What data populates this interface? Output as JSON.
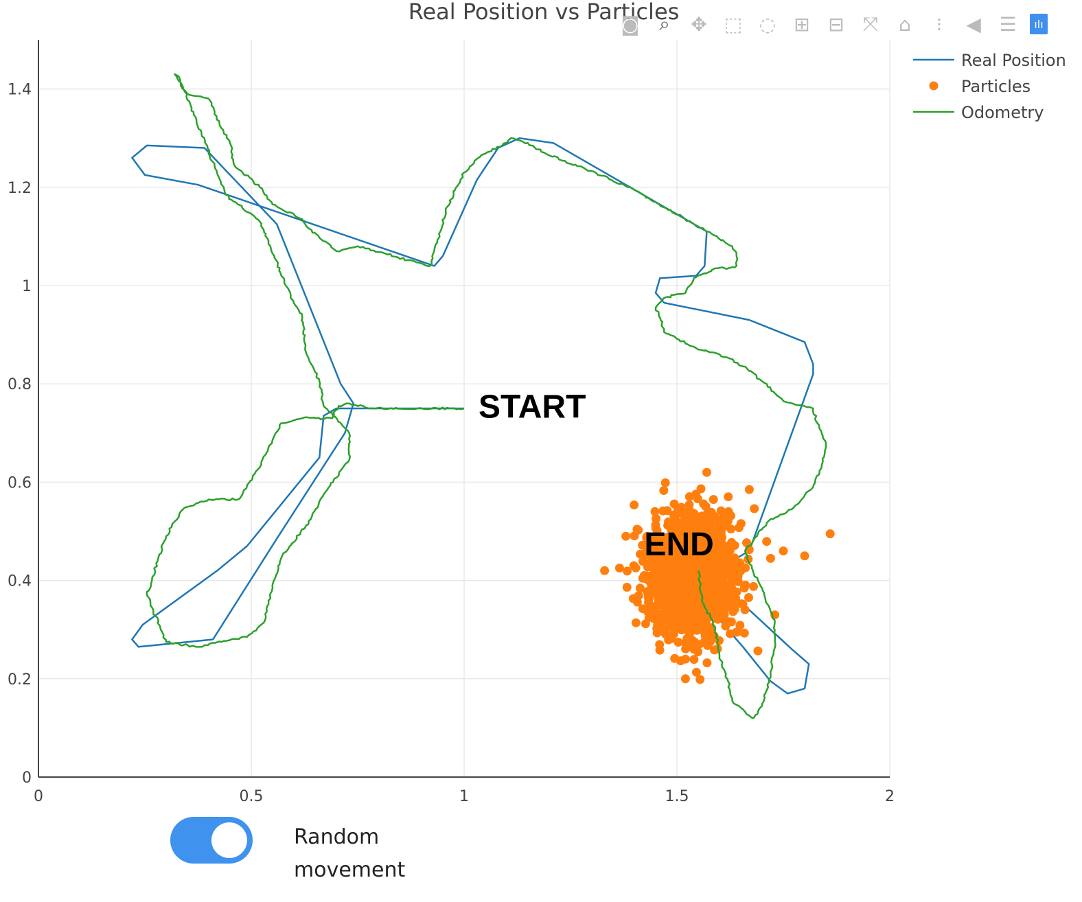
{
  "page": {
    "toggle": {
      "label": "Random movement",
      "on": true
    }
  },
  "modebar": {
    "icons": [
      "camera-icon",
      "zoom-icon",
      "pan-icon",
      "box-select-icon",
      "lasso-select-icon",
      "zoom-in-icon",
      "zoom-out-icon",
      "autoscale-icon",
      "reset-axes-icon",
      "spike-lines-icon",
      "hover-closest-icon",
      "hover-compare-icon",
      "plotly-logo-icon"
    ]
  },
  "colors": {
    "real": "#1f77b4",
    "particles": "#ff7f0e",
    "odometry": "#2ca02c",
    "toggle": "#3f92ee"
  },
  "chart_data": {
    "type": "scatter",
    "title": "Real Position vs Particles",
    "xlabel": "",
    "ylabel": "",
    "xlim": [
      0,
      2
    ],
    "ylim": [
      0,
      1.5
    ],
    "xticks": [
      0,
      0.5,
      1,
      1.5,
      2
    ],
    "xtick_labels": [
      "0",
      "0.5",
      "1",
      "1.5",
      "2"
    ],
    "yticks": [
      0,
      0.2,
      0.4,
      0.6,
      0.8,
      1,
      1.2,
      1.4
    ],
    "ytick_labels": [
      "0",
      "0.2",
      "0.4",
      "0.6",
      "0.8",
      "1",
      "1.2",
      "1.4"
    ],
    "grid": true,
    "legend_position": "top-right",
    "annotations": [
      {
        "text": "START",
        "x": 1.16,
        "y": 0.755
      },
      {
        "text": "END",
        "x": 1.505,
        "y": 0.475
      }
    ],
    "series": [
      {
        "name": "Real Position",
        "mode": "line",
        "x": [
          1.0,
          0.7,
          0.67,
          0.66,
          0.49,
          0.42,
          0.245,
          0.22,
          0.235,
          0.41,
          0.56,
          0.72,
          0.74,
          0.71,
          0.56,
          0.39,
          0.255,
          0.22,
          0.25,
          0.375,
          0.93,
          0.95,
          1.03,
          1.08,
          1.13,
          1.21,
          1.57,
          1.565,
          1.545,
          1.46,
          1.45,
          1.47,
          1.67,
          1.8,
          1.82,
          1.82,
          1.67,
          1.59,
          1.57,
          1.67,
          1.77,
          1.81,
          1.8,
          1.76,
          1.72,
          1.655,
          1.6,
          1.57,
          1.54,
          1.52,
          1.53,
          1.55
        ],
        "y": [
          0.75,
          0.75,
          0.735,
          0.65,
          0.47,
          0.42,
          0.31,
          0.28,
          0.265,
          0.28,
          0.485,
          0.7,
          0.76,
          0.8,
          1.125,
          1.28,
          1.285,
          1.26,
          1.225,
          1.205,
          1.04,
          1.06,
          1.215,
          1.28,
          1.3,
          1.29,
          1.11,
          1.04,
          1.02,
          1.015,
          0.985,
          0.965,
          0.93,
          0.885,
          0.84,
          0.82,
          0.46,
          0.42,
          0.4,
          0.34,
          0.26,
          0.23,
          0.18,
          0.17,
          0.195,
          0.265,
          0.32,
          0.345,
          0.38,
          0.41,
          0.43,
          0.44
        ]
      },
      {
        "name": "Particles",
        "mode": "markers",
        "center": [
          1.535,
          0.41
        ],
        "spread": [
          0.05,
          0.06
        ],
        "count": 1600,
        "outliers": [
          [
            1.57,
            0.62
          ],
          [
            1.86,
            0.495
          ],
          [
            1.8,
            0.45
          ],
          [
            1.52,
            0.2
          ],
          [
            1.54,
            0.26
          ],
          [
            1.52,
            0.24
          ],
          [
            1.38,
            0.49
          ],
          [
            1.72,
            0.445
          ],
          [
            1.33,
            0.42
          ],
          [
            1.73,
            0.33
          ],
          [
            1.67,
            0.585
          ],
          [
            1.75,
            0.46
          ]
        ]
      },
      {
        "name": "Odometry",
        "mode": "line",
        "x": [
          1.0,
          0.78,
          0.73,
          0.705,
          0.69,
          0.62,
          0.57,
          0.52,
          0.47,
          0.4,
          0.34,
          0.32,
          0.3,
          0.28,
          0.265,
          0.255,
          0.3,
          0.37,
          0.43,
          0.49,
          0.53,
          0.55,
          0.57,
          0.64,
          0.67,
          0.73,
          0.73,
          0.67,
          0.66,
          0.63,
          0.62,
          0.6,
          0.55,
          0.52,
          0.44,
          0.33,
          0.32,
          0.35,
          0.4,
          0.43,
          0.45,
          0.46,
          0.52,
          0.55,
          0.62,
          0.63,
          0.7,
          0.75,
          0.92,
          0.96,
          1.0,
          1.04,
          1.09,
          1.11,
          1.15,
          1.2,
          1.28,
          1.4,
          1.57,
          1.63,
          1.64,
          1.64,
          1.62,
          1.59,
          1.54,
          1.52,
          1.47,
          1.45,
          1.46,
          1.47,
          1.55,
          1.6,
          1.66,
          1.7,
          1.75,
          1.82,
          1.83,
          1.85,
          1.85,
          1.84,
          1.82,
          1.77,
          1.72,
          1.69,
          1.66,
          1.68,
          1.7,
          1.73,
          1.73,
          1.72,
          1.71,
          1.7,
          1.68,
          1.67,
          1.63,
          1.62,
          1.6,
          1.59,
          1.56,
          1.55
        ],
        "y": [
          0.75,
          0.75,
          0.76,
          0.755,
          0.73,
          0.73,
          0.72,
          0.63,
          0.565,
          0.565,
          0.545,
          0.52,
          0.49,
          0.44,
          0.395,
          0.37,
          0.275,
          0.265,
          0.275,
          0.285,
          0.315,
          0.385,
          0.445,
          0.525,
          0.575,
          0.645,
          0.7,
          0.755,
          0.805,
          0.86,
          0.935,
          0.965,
          1.065,
          1.13,
          1.185,
          1.425,
          1.43,
          1.39,
          1.38,
          1.32,
          1.29,
          1.245,
          1.2,
          1.165,
          1.135,
          1.12,
          1.07,
          1.08,
          1.04,
          1.16,
          1.23,
          1.265,
          1.285,
          1.3,
          1.29,
          1.265,
          1.24,
          1.195,
          1.11,
          1.08,
          1.06,
          1.04,
          1.035,
          1.035,
          1.015,
          0.985,
          0.975,
          0.955,
          0.935,
          0.905,
          0.87,
          0.86,
          0.835,
          0.805,
          0.765,
          0.75,
          0.72,
          0.68,
          0.67,
          0.63,
          0.59,
          0.545,
          0.525,
          0.495,
          0.46,
          0.415,
          0.385,
          0.315,
          0.275,
          0.21,
          0.175,
          0.145,
          0.12,
          0.125,
          0.155,
          0.195,
          0.245,
          0.305,
          0.355,
          0.42
        ]
      }
    ]
  }
}
